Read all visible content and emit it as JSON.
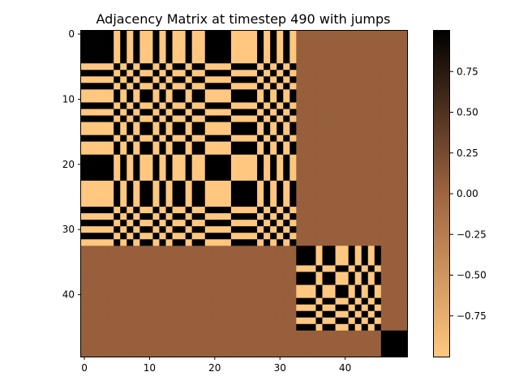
{
  "chart_data": {
    "type": "heatmap",
    "title": "Adjacency Matrix at timestep 490 with jumps",
    "size": 50,
    "x_ticks": [
      0,
      10,
      20,
      30,
      40
    ],
    "y_ticks": [
      0,
      10,
      20,
      30,
      40
    ],
    "colorbar": {
      "colormap": "copper_r",
      "vmin": -1,
      "vmax": 1,
      "ticks": [
        -0.75,
        -0.5,
        -0.25,
        0.0,
        0.25,
        0.5,
        0.75
      ],
      "tick_labels": [
        "−0.75",
        "−0.50",
        "−0.25",
        "0.00",
        "0.25",
        "0.50",
        "0.75"
      ]
    },
    "blocks": [
      {
        "start": 0,
        "end": 32,
        "signs": [
          1,
          1,
          1,
          1,
          1,
          -1,
          1,
          -1,
          1,
          -1,
          -1,
          1,
          -1,
          1,
          -1,
          -1,
          1,
          -1,
          -1,
          1,
          1,
          1,
          1,
          -1,
          -1,
          -1,
          -1,
          1,
          -1,
          1,
          -1,
          1,
          -1
        ]
      },
      {
        "start": 33,
        "end": 45,
        "signs": [
          1,
          1,
          1,
          -1,
          1,
          1,
          -1,
          -1,
          1,
          -1,
          1,
          -1,
          1
        ]
      },
      {
        "start": 46,
        "end": 49,
        "signs": [
          1,
          1,
          1,
          1
        ]
      }
    ],
    "off_block_value": 0.05
  }
}
